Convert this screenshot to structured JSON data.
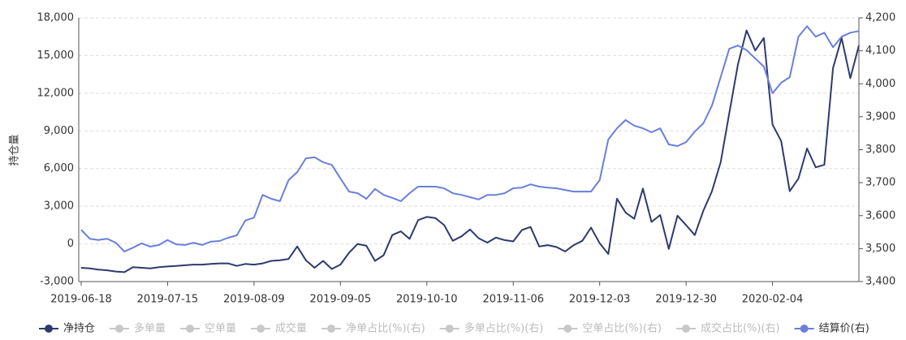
{
  "chart_data": {
    "type": "line",
    "y_label": "持仓量",
    "categories": [
      "2019-06-18",
      null,
      null,
      null,
      null,
      null,
      null,
      null,
      null,
      null,
      "2019-07-15",
      null,
      null,
      null,
      null,
      null,
      null,
      null,
      null,
      null,
      "2019-08-09",
      null,
      null,
      null,
      null,
      null,
      null,
      null,
      null,
      null,
      "2019-09-05",
      null,
      null,
      null,
      null,
      null,
      null,
      null,
      null,
      null,
      "2019-10-10",
      null,
      null,
      null,
      null,
      null,
      null,
      null,
      null,
      null,
      "2019-11-06",
      null,
      null,
      null,
      null,
      null,
      null,
      null,
      null,
      null,
      "2019-12-03",
      null,
      null,
      null,
      null,
      null,
      null,
      null,
      null,
      null,
      "2019-12-30",
      null,
      null,
      null,
      null,
      null,
      null,
      null,
      null,
      null,
      "2020-02-04",
      null,
      null,
      null,
      null,
      null,
      null,
      null,
      null,
      null,
      null
    ],
    "ylim": [
      -3000,
      18000
    ],
    "yticks": [
      {
        "value": -3000,
        "label": "-3,000"
      },
      0,
      {
        "value": 3000,
        "label": "3,000"
      },
      {
        "value": 6000,
        "label": "6,000"
      },
      {
        "value": 9000,
        "label": "9,000"
      },
      {
        "value": 12000,
        "label": "12,000"
      },
      {
        "value": 15000,
        "label": "15,000"
      },
      {
        "value": 18000,
        "label": "18,000"
      }
    ],
    "y2lim": [
      3400,
      4200
    ],
    "y2ticks": [
      {
        "value": 3400,
        "label": "3,400"
      },
      {
        "value": 3500,
        "label": "3,500"
      },
      {
        "value": 3600,
        "label": "3,600"
      },
      {
        "value": 3700,
        "label": "3,700"
      },
      {
        "value": 3800,
        "label": "3,800"
      },
      {
        "value": 3900,
        "label": "3,900"
      },
      {
        "value": 4000,
        "label": "4,000"
      },
      {
        "value": 4100,
        "label": "4,100"
      },
      {
        "value": 4200,
        "label": "4,200"
      }
    ],
    "grid": true,
    "legend": "bottom",
    "series": [
      {
        "name": "净持仓",
        "color": "#2e3a6e",
        "visible": true,
        "values": [
          -1900,
          -1950,
          -2050,
          -2100,
          -2200,
          -2250,
          -1850,
          -1900,
          -1950,
          -1850,
          -1800,
          -1750,
          -1700,
          -1650,
          -1650,
          -1600,
          -1550,
          -1550,
          -1750,
          -1600,
          -1650,
          -1550,
          -1350,
          -1300,
          -1200,
          -200,
          -1300,
          -1900,
          -1350,
          -2000,
          -1650,
          -700,
          0,
          -150,
          -1350,
          -900,
          700,
          1000,
          400,
          1900,
          2150,
          2050,
          1500,
          250,
          600,
          1150,
          450,
          100,
          500,
          300,
          200,
          1100,
          1350,
          -200,
          -100,
          -250,
          -600,
          -100,
          250,
          1300,
          50,
          -800,
          3600,
          2500,
          2000,
          4400,
          1750,
          2300,
          -400,
          2250,
          1500,
          700,
          2650,
          4200,
          6500,
          10400,
          14300,
          17000,
          15400,
          16400,
          9500,
          8200,
          4200,
          5200,
          7600,
          6100,
          6300,
          14000,
          16400,
          13200,
          15800
        ]
      },
      {
        "name": "多单量",
        "color": "#c8c8c8",
        "visible": false
      },
      {
        "name": "空单量",
        "color": "#c8c8c8",
        "visible": false
      },
      {
        "name": "成交量",
        "color": "#c8c8c8",
        "visible": false
      },
      {
        "name": "净单占比(%)(右)",
        "color": "#c8c8c8",
        "visible": false
      },
      {
        "name": "多单占比(%)(右)",
        "color": "#c8c8c8",
        "visible": false
      },
      {
        "name": "空单占比(%)(右)",
        "color": "#c8c8c8",
        "visible": false
      },
      {
        "name": "成交占比(%)(右)",
        "color": "#c8c8c8",
        "visible": false
      },
      {
        "name": "结算价(右)",
        "color": "#6a7fdc",
        "visible": true,
        "axis": "y2",
        "values": [
          3557,
          3530,
          3526,
          3530,
          3518,
          3491,
          3503,
          3516,
          3506,
          3511,
          3526,
          3513,
          3511,
          3518,
          3511,
          3521,
          3523,
          3533,
          3540,
          3585,
          3594,
          3663,
          3651,
          3644,
          3708,
          3732,
          3774,
          3777,
          3762,
          3754,
          3713,
          3673,
          3668,
          3651,
          3681,
          3663,
          3654,
          3644,
          3668,
          3688,
          3688,
          3688,
          3683,
          3668,
          3663,
          3656,
          3649,
          3663,
          3663,
          3668,
          3683,
          3685,
          3695,
          3688,
          3685,
          3683,
          3678,
          3673,
          3673,
          3673,
          3708,
          3831,
          3865,
          3890,
          3873,
          3865,
          3853,
          3865,
          3816,
          3811,
          3823,
          3855,
          3880,
          3934,
          4020,
          4106,
          4116,
          4102,
          4077,
          4052,
          3971,
          4003,
          4020,
          4143,
          4175,
          4143,
          4155,
          4111,
          4143,
          4155,
          4160
        ]
      }
    ]
  }
}
